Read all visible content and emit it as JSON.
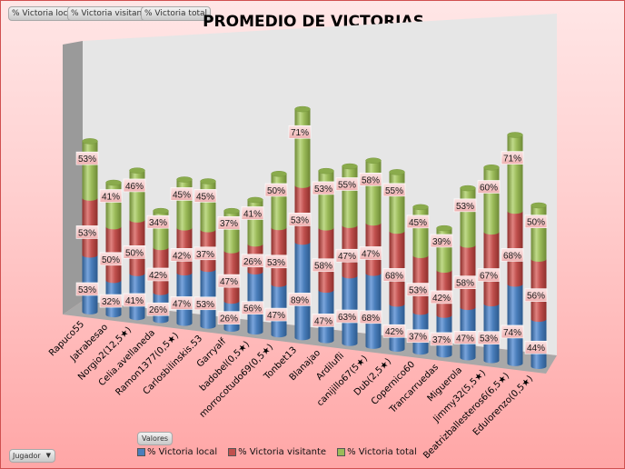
{
  "field_buttons": [
    "% Victoria local",
    "% Victoria visitante",
    "% Victoria total"
  ],
  "values_button": "Valores",
  "axis_filter": {
    "label": "Jugador"
  },
  "colors": {
    "local": "#4a7ebb",
    "visitante": "#c0504d",
    "total": "#9bbb59"
  },
  "chart_data": {
    "type": "bar",
    "stacked": true,
    "title": "PROMEDIO DE VICTORIAS",
    "xlabel": "",
    "ylabel": "",
    "legend_position": "bottom",
    "categories": [
      "Rapuco55",
      "Jatrabesao",
      "Norgio2(12,5★)",
      "Celia.avellaneda",
      "Ramon1377(0,5★)",
      "Carlosbilinskis.53",
      "Garryalf",
      "badobel(0,5★)",
      "morrocotudo69(0,5★)",
      "Tonbet13",
      "Blanajao",
      "Ardilufli",
      "canijillo67(5★)",
      "Dub(2,5★)",
      "Copernico60",
      "Trancarruedas",
      "Miguerola",
      "Jimmy32(5,5★)",
      "Beatrizballesteros6(6,5★)",
      "Edulorenzo(0,5★)"
    ],
    "series": [
      {
        "name": "% Victoria local",
        "values": [
          53,
          32,
          41,
          26,
          47,
          53,
          26,
          56,
          47,
          89,
          47,
          63,
          68,
          42,
          37,
          37,
          47,
          53,
          74,
          44
        ]
      },
      {
        "name": "% Victoria visitante",
        "values": [
          53,
          50,
          50,
          42,
          42,
          37,
          47,
          26,
          53,
          53,
          58,
          47,
          47,
          68,
          53,
          42,
          58,
          67,
          68,
          56
        ]
      },
      {
        "name": "% Victoria total",
        "values": [
          53,
          41,
          46,
          34,
          45,
          45,
          37,
          41,
          50,
          71,
          53,
          55,
          58,
          55,
          45,
          39,
          53,
          60,
          71,
          50
        ]
      }
    ]
  }
}
